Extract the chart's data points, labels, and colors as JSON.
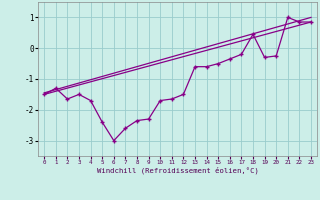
{
  "xlabel": "Windchill (Refroidissement éolien,°C)",
  "bg_color": "#cceee8",
  "line_color": "#880088",
  "grid_color": "#99cccc",
  "xlim": [
    -0.5,
    23.5
  ],
  "ylim": [
    -3.5,
    1.5
  ],
  "yticks": [
    -3,
    -2,
    -1,
    0,
    1
  ],
  "xticks": [
    0,
    1,
    2,
    3,
    4,
    5,
    6,
    7,
    8,
    9,
    10,
    11,
    12,
    13,
    14,
    15,
    16,
    17,
    18,
    19,
    20,
    21,
    22,
    23
  ],
  "series_zigzag_x": [
    0,
    1,
    2,
    3,
    4,
    5,
    6,
    7,
    8,
    9,
    10,
    11,
    12,
    13,
    14,
    15,
    16,
    17,
    18,
    19,
    20,
    21,
    22,
    23
  ],
  "series_zigzag_y": [
    -1.5,
    -1.3,
    -1.65,
    -1.5,
    -1.7,
    -2.4,
    -3.0,
    -2.6,
    -2.35,
    -2.3,
    -1.7,
    -1.65,
    -1.5,
    -0.6,
    -0.6,
    -0.5,
    -0.35,
    -0.2,
    0.45,
    -0.3,
    -0.25,
    1.0,
    0.85,
    0.85
  ],
  "series_line1_x": [
    0,
    23
  ],
  "series_line1_y": [
    -1.5,
    0.85
  ],
  "series_line2_x": [
    0,
    23
  ],
  "series_line2_y": [
    -1.45,
    1.0
  ]
}
